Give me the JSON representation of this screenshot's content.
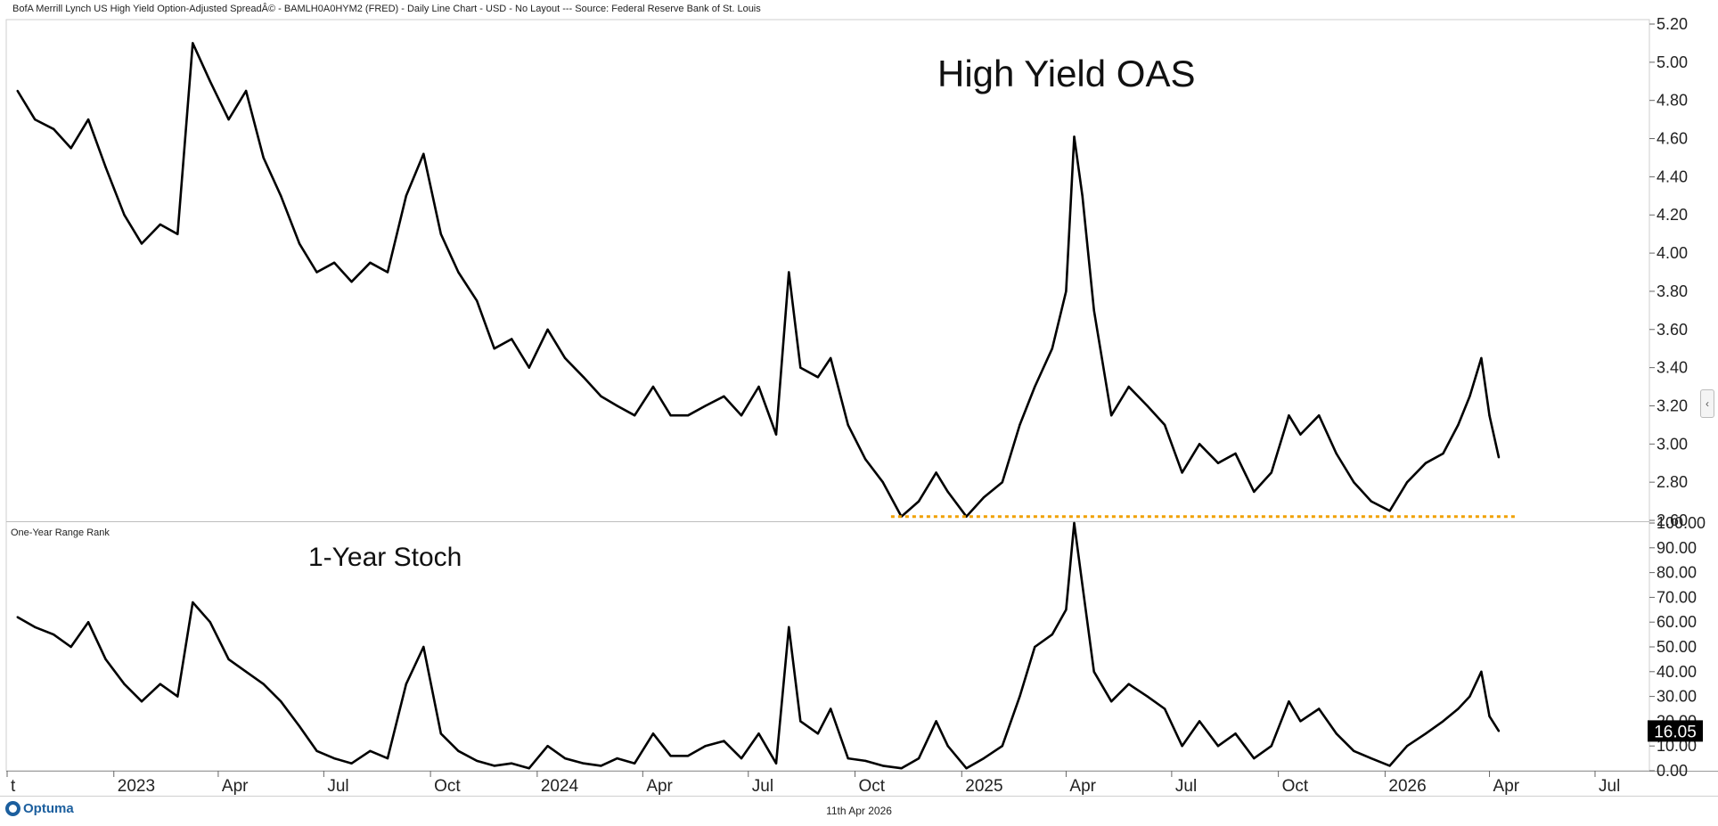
{
  "header": {
    "title": "BofA Merrill Lynch US High Yield Option-Adjusted SpreadÂ© - BAMLH0A0HYM2 (FRED) - Daily Line Chart - USD - No Layout --- Source: Federal Reserve Bank of St. Louis"
  },
  "footer": {
    "date": "11th Apr 2026",
    "brand": "Optuma"
  },
  "chart_data": [
    {
      "type": "line",
      "title": "High Yield OAS",
      "ylim": [
        2.6,
        5.2
      ],
      "y_ticks": [
        "5.20",
        "5.00",
        "4.80",
        "4.60",
        "4.40",
        "4.20",
        "4.00",
        "3.80",
        "3.60",
        "3.40",
        "3.20",
        "3.00",
        "2.80",
        "2.60"
      ],
      "support_level": 2.62,
      "support_color": "#f0a000",
      "line_color": "#000000",
      "x": [
        "2022-10-10",
        "2022-10-25",
        "2022-11-10",
        "2022-11-25",
        "2022-12-10",
        "2022-12-25",
        "2023-01-10",
        "2023-01-25",
        "2023-02-10",
        "2023-02-25",
        "2023-03-10",
        "2023-03-25",
        "2023-04-10",
        "2023-04-25",
        "2023-05-10",
        "2023-05-25",
        "2023-06-10",
        "2023-06-25",
        "2023-07-10",
        "2023-07-25",
        "2023-08-10",
        "2023-08-25",
        "2023-09-10",
        "2023-09-25",
        "2023-10-10",
        "2023-10-25",
        "2023-11-10",
        "2023-11-25",
        "2023-12-10",
        "2023-12-25",
        "2024-01-10",
        "2024-01-25",
        "2024-02-10",
        "2024-02-25",
        "2024-03-10",
        "2024-03-25",
        "2024-04-10",
        "2024-04-25",
        "2024-05-10",
        "2024-05-25",
        "2024-06-10",
        "2024-06-25",
        "2024-07-10",
        "2024-07-25",
        "2024-08-05",
        "2024-08-15",
        "2024-08-30",
        "2024-09-10",
        "2024-09-25",
        "2024-10-10",
        "2024-10-25",
        "2024-11-10",
        "2024-11-25",
        "2024-12-10",
        "2024-12-20",
        "2025-01-05",
        "2025-01-20",
        "2025-02-05",
        "2025-02-20",
        "2025-03-05",
        "2025-03-20",
        "2025-04-01",
        "2025-04-08",
        "2025-04-15",
        "2025-04-25",
        "2025-05-10",
        "2025-05-25",
        "2025-06-10",
        "2025-06-25",
        "2025-07-10",
        "2025-07-25",
        "2025-08-10",
        "2025-08-25",
        "2025-09-10",
        "2025-09-25",
        "2025-10-10",
        "2025-10-20",
        "2025-11-05",
        "2025-11-20",
        "2025-12-05",
        "2025-12-20",
        "2026-01-05",
        "2026-01-20",
        "2026-02-05",
        "2026-02-20",
        "2026-03-05",
        "2026-03-15",
        "2026-03-25",
        "2026-04-01",
        "2026-04-09"
      ],
      "values": [
        4.85,
        4.7,
        4.65,
        4.55,
        4.7,
        4.45,
        4.2,
        4.05,
        4.15,
        4.1,
        5.1,
        4.9,
        4.7,
        4.85,
        4.5,
        4.3,
        4.05,
        3.9,
        3.95,
        3.85,
        3.95,
        3.9,
        4.3,
        4.52,
        4.1,
        3.9,
        3.75,
        3.5,
        3.55,
        3.4,
        3.6,
        3.45,
        3.35,
        3.25,
        3.2,
        3.15,
        3.3,
        3.15,
        3.15,
        3.2,
        3.25,
        3.15,
        3.3,
        3.05,
        3.9,
        3.4,
        3.35,
        3.45,
        3.1,
        2.92,
        2.8,
        2.62,
        2.7,
        2.85,
        2.75,
        2.62,
        2.72,
        2.8,
        3.1,
        3.3,
        3.5,
        3.8,
        4.61,
        4.3,
        3.7,
        3.15,
        3.3,
        3.2,
        3.1,
        2.85,
        3.0,
        2.9,
        2.95,
        2.75,
        2.85,
        3.15,
        3.05,
        3.15,
        2.95,
        2.8,
        2.7,
        2.65,
        2.8,
        2.9,
        2.95,
        3.1,
        3.25,
        3.45,
        3.15,
        2.93
      ]
    },
    {
      "type": "line",
      "title": "1-Year Stoch",
      "panel_label": "One-Year Range Rank",
      "ylim": [
        0,
        100
      ],
      "y_ticks": [
        "100.00",
        "90.00",
        "80.00",
        "70.00",
        "60.00",
        "50.00",
        "40.00",
        "30.00",
        "20.00",
        "10.00",
        "0.00"
      ],
      "last_value_label": "16.05",
      "last_value": 16.05,
      "line_color": "#000000",
      "x": [
        "2022-10-10",
        "2022-10-25",
        "2022-11-10",
        "2022-11-25",
        "2022-12-10",
        "2022-12-25",
        "2023-01-10",
        "2023-01-25",
        "2023-02-10",
        "2023-02-25",
        "2023-03-10",
        "2023-03-25",
        "2023-04-10",
        "2023-04-25",
        "2023-05-10",
        "2023-05-25",
        "2023-06-10",
        "2023-06-25",
        "2023-07-10",
        "2023-07-25",
        "2023-08-10",
        "2023-08-25",
        "2023-09-10",
        "2023-09-25",
        "2023-10-10",
        "2023-10-25",
        "2023-11-10",
        "2023-11-25",
        "2023-12-10",
        "2023-12-25",
        "2024-01-10",
        "2024-01-25",
        "2024-02-10",
        "2024-02-25",
        "2024-03-10",
        "2024-03-25",
        "2024-04-10",
        "2024-04-25",
        "2024-05-10",
        "2024-05-25",
        "2024-06-10",
        "2024-06-25",
        "2024-07-10",
        "2024-07-25",
        "2024-08-05",
        "2024-08-15",
        "2024-08-30",
        "2024-09-10",
        "2024-09-25",
        "2024-10-10",
        "2024-10-25",
        "2024-11-10",
        "2024-11-25",
        "2024-12-10",
        "2024-12-20",
        "2025-01-05",
        "2025-01-20",
        "2025-02-05",
        "2025-02-20",
        "2025-03-05",
        "2025-03-20",
        "2025-04-01",
        "2025-04-08",
        "2025-04-15",
        "2025-04-25",
        "2025-05-10",
        "2025-05-25",
        "2025-06-10",
        "2025-06-25",
        "2025-07-10",
        "2025-07-25",
        "2025-08-10",
        "2025-08-25",
        "2025-09-10",
        "2025-09-25",
        "2025-10-10",
        "2025-10-20",
        "2025-11-05",
        "2025-11-20",
        "2025-12-05",
        "2025-12-20",
        "2026-01-05",
        "2026-01-20",
        "2026-02-05",
        "2026-02-20",
        "2026-03-05",
        "2026-03-15",
        "2026-03-25",
        "2026-04-01",
        "2026-04-09"
      ],
      "values": [
        62,
        58,
        55,
        50,
        60,
        45,
        35,
        28,
        35,
        30,
        68,
        60,
        45,
        40,
        35,
        28,
        18,
        8,
        5,
        3,
        8,
        5,
        35,
        50,
        15,
        8,
        4,
        2,
        3,
        1,
        10,
        5,
        3,
        2,
        5,
        3,
        15,
        6,
        6,
        10,
        12,
        5,
        15,
        3,
        58,
        20,
        15,
        25,
        5,
        4,
        2,
        1,
        5,
        20,
        10,
        1,
        5,
        10,
        30,
        50,
        55,
        65,
        100,
        75,
        40,
        28,
        35,
        30,
        25,
        10,
        20,
        10,
        15,
        5,
        10,
        28,
        20,
        25,
        15,
        8,
        5,
        2,
        10,
        15,
        20,
        25,
        30,
        40,
        22,
        16.05
      ]
    }
  ],
  "x_axis": {
    "ticks": [
      {
        "date": "2022-10-01",
        "label": "t"
      },
      {
        "date": "2023-01-01",
        "label": "2023"
      },
      {
        "date": "2023-04-01",
        "label": "Apr"
      },
      {
        "date": "2023-07-01",
        "label": "Jul"
      },
      {
        "date": "2023-10-01",
        "label": "Oct"
      },
      {
        "date": "2024-01-01",
        "label": "2024"
      },
      {
        "date": "2024-04-01",
        "label": "Apr"
      },
      {
        "date": "2024-07-01",
        "label": "Jul"
      },
      {
        "date": "2024-10-01",
        "label": "Oct"
      },
      {
        "date": "2025-01-01",
        "label": "2025"
      },
      {
        "date": "2025-04-01",
        "label": "Apr"
      },
      {
        "date": "2025-07-01",
        "label": "Jul"
      },
      {
        "date": "2025-10-01",
        "label": "Oct"
      },
      {
        "date": "2026-01-01",
        "label": "2026"
      },
      {
        "date": "2026-04-01",
        "label": "Apr"
      },
      {
        "date": "2026-07-01",
        "label": "Jul"
      }
    ]
  }
}
